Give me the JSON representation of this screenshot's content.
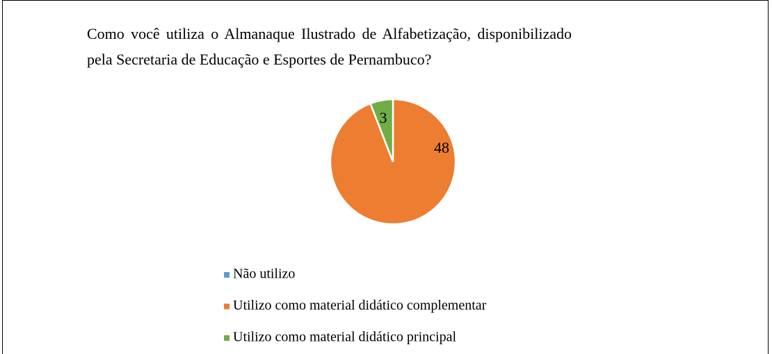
{
  "chart_data": {
    "type": "pie",
    "title": "Como você utiliza o Almanaque Ilustrado de Alfabetização, disponibilizado pela Secretaria de Educação e Esportes de Pernambuco?",
    "categories": [
      "Não utilizo",
      "Utilizo como material didático complementar",
      "Utilizo como material didático principal"
    ],
    "values": [
      0,
      48,
      3
    ],
    "colors": [
      "#5b9bd5",
      "#ed7d31",
      "#70ad47"
    ],
    "legend": "bottom"
  }
}
